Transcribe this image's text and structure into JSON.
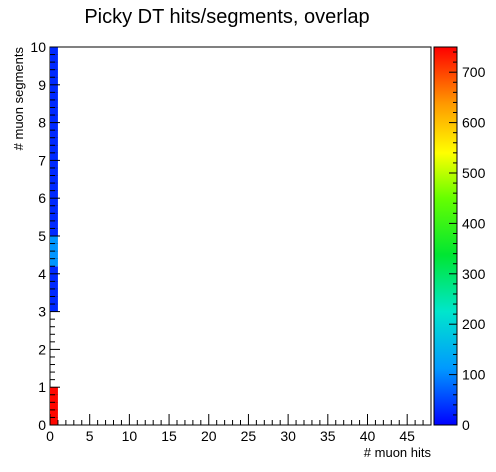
{
  "chart_data": {
    "type": "heatmap",
    "title": "Picky DT hits/segments, overlap",
    "xlabel": "# muon hits",
    "ylabel": "# muon segments",
    "xlim": [
      0,
      48
    ],
    "ylim": [
      0,
      10
    ],
    "x_ticks": [
      "0",
      "5",
      "10",
      "15",
      "20",
      "25",
      "30",
      "35",
      "40",
      "45"
    ],
    "y_ticks": [
      "0",
      "1",
      "2",
      "3",
      "4",
      "5",
      "6",
      "7",
      "8",
      "9",
      "10"
    ],
    "z_range": [
      0,
      750
    ],
    "z_ticks": [
      "0",
      "100",
      "200",
      "300",
      "400",
      "500",
      "600",
      "700"
    ],
    "palette": "rainbow",
    "bin_width_y": 0.2,
    "cells": [
      {
        "x0": 0,
        "x1": 1,
        "y0": 0,
        "y1": 1,
        "value": 745
      },
      {
        "x0": 0,
        "x1": 1,
        "y0": 3,
        "y1": 4.2,
        "value": 30
      },
      {
        "x0": 0,
        "x1": 1,
        "y0": 4.2,
        "y1": 5,
        "value": 110
      },
      {
        "x0": 0,
        "x1": 1,
        "y0": 5,
        "y1": 10,
        "value": 30
      }
    ]
  }
}
